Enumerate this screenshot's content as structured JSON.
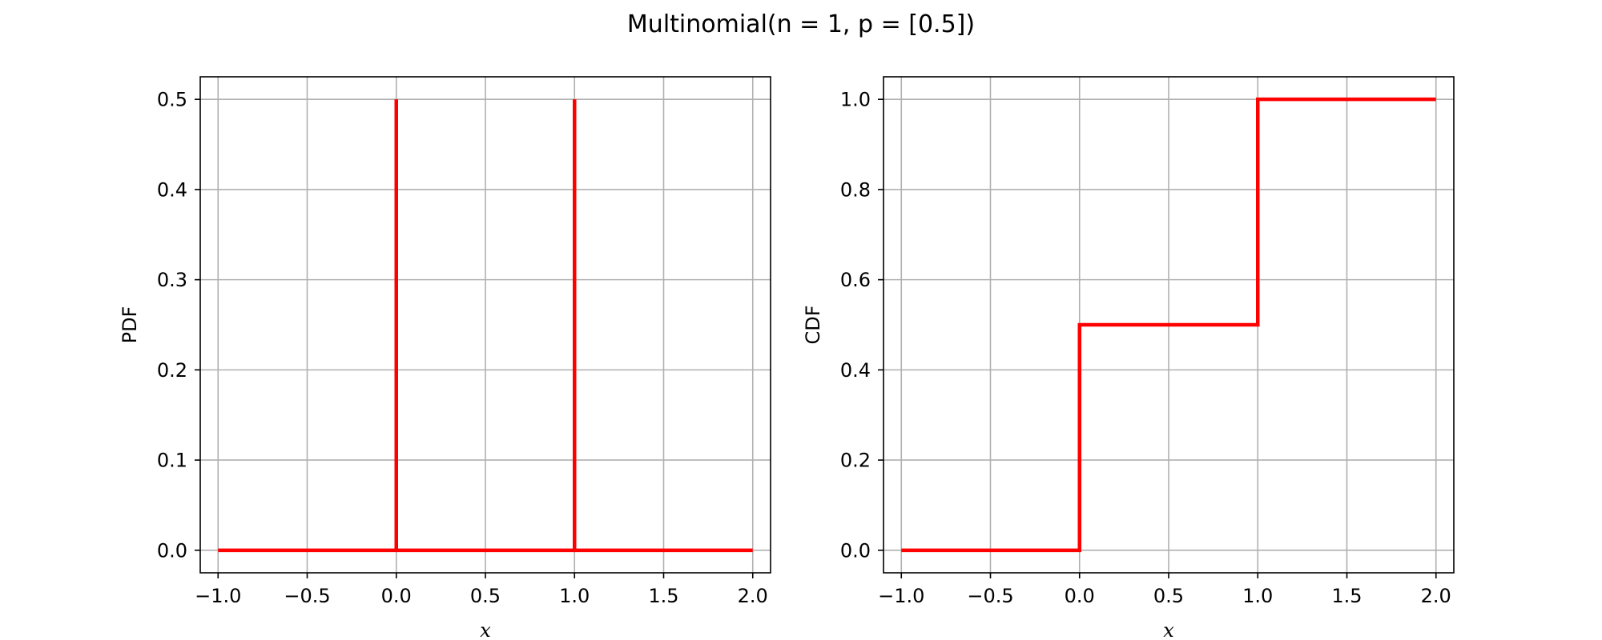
{
  "title": "Multinomial(n = 1, p = [0.5])",
  "colors": {
    "line": "#ff0000",
    "grid": "#b0b0b0",
    "axes": "#000000"
  },
  "chart_data": [
    {
      "type": "line",
      "xlabel": "x",
      "ylabel": "PDF",
      "xlim": [
        -1.1,
        2.1
      ],
      "ylim": [
        -0.025,
        0.525
      ],
      "xticks": [
        -1.0,
        -0.5,
        0.0,
        0.5,
        1.0,
        1.5,
        2.0
      ],
      "xtick_labels": [
        "−1.0",
        "−0.5",
        "0.0",
        "0.5",
        "1.0",
        "1.5",
        "2.0"
      ],
      "yticks": [
        0.0,
        0.1,
        0.2,
        0.3,
        0.4,
        0.5
      ],
      "ytick_labels": [
        "0.0",
        "0.1",
        "0.2",
        "0.3",
        "0.4",
        "0.5"
      ],
      "grid": true,
      "series": [
        {
          "x": [
            -1.0,
            0.0,
            0.0,
            0.0,
            1.0,
            1.0,
            1.0,
            2.0
          ],
          "y": [
            0.0,
            0.0,
            0.5,
            0.0,
            0.0,
            0.5,
            0.0,
            0.0
          ]
        }
      ]
    },
    {
      "type": "line",
      "xlabel": "x",
      "ylabel": "CDF",
      "xlim": [
        -1.1,
        2.1
      ],
      "ylim": [
        -0.05,
        1.05
      ],
      "xticks": [
        -1.0,
        -0.5,
        0.0,
        0.5,
        1.0,
        1.5,
        2.0
      ],
      "xtick_labels": [
        "−1.0",
        "−0.5",
        "0.0",
        "0.5",
        "1.0",
        "1.5",
        "2.0"
      ],
      "yticks": [
        0.0,
        0.2,
        0.4,
        0.6,
        0.8,
        1.0
      ],
      "ytick_labels": [
        "0.0",
        "0.2",
        "0.4",
        "0.6",
        "0.8",
        "1.0"
      ],
      "grid": true,
      "series": [
        {
          "x": [
            -1.0,
            0.0,
            0.0,
            1.0,
            1.0,
            2.0
          ],
          "y": [
            0.0,
            0.0,
            0.5,
            0.5,
            1.0,
            1.0
          ]
        }
      ]
    }
  ]
}
